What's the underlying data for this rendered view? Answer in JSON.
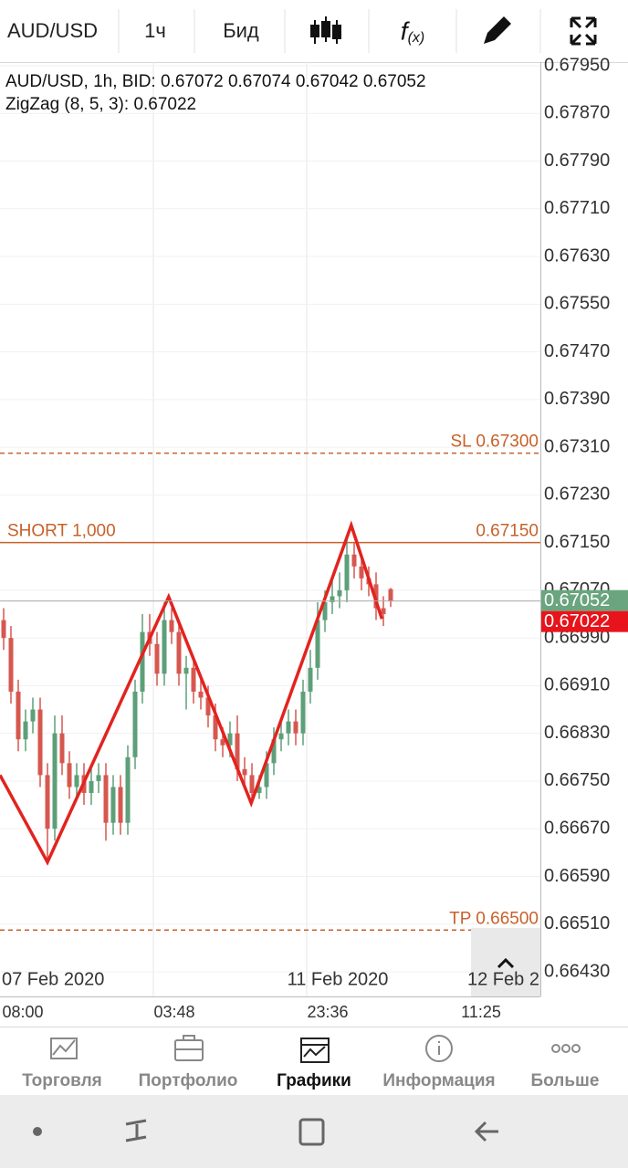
{
  "toolbar": {
    "symbol": "AUD/USD",
    "timeframe": "1ч",
    "price_type": "Бид"
  },
  "chart_data": {
    "type": "candlestick",
    "legend": [
      "AUD/USD, 1h, BID: 0.67072 0.67074 0.67042 0.67052",
      "ZigZag (8, 5, 3): 0.67022"
    ],
    "colors": {
      "up": "#5d9f79",
      "down": "#d6574f"
    },
    "open": [
      0.6702,
      0.6699,
      0.669,
      0.6682,
      0.6685,
      0.6687,
      0.6676,
      0.6667,
      0.6683,
      0.6678,
      0.6674,
      0.6676,
      0.6673,
      0.6675,
      0.6676,
      0.6668,
      0.6674,
      0.6668,
      0.6679,
      0.669,
      0.67,
      0.6698,
      0.6693,
      0.6702,
      0.67,
      0.6693,
      0.6694,
      0.669,
      0.6689,
      0.6686,
      0.6682,
      0.6681,
      0.6683,
      0.6677,
      0.6676,
      0.6673,
      0.6674,
      0.6678,
      0.6682,
      0.6683,
      0.6685,
      0.6683,
      0.669,
      0.6694,
      0.6702,
      0.6705,
      0.6706,
      0.6707,
      0.6713,
      0.6711,
      0.6709,
      0.6708,
      0.6704,
      0.67072
    ],
    "high": [
      0.6704,
      0.6701,
      0.6692,
      0.6687,
      0.6689,
      0.6689,
      0.6678,
      0.6686,
      0.6686,
      0.668,
      0.6678,
      0.6678,
      0.6677,
      0.6678,
      0.6678,
      0.6676,
      0.6676,
      0.6681,
      0.6692,
      0.6703,
      0.6703,
      0.67,
      0.6705,
      0.6704,
      0.6702,
      0.6696,
      0.6696,
      0.6692,
      0.6691,
      0.6688,
      0.6684,
      0.6685,
      0.6686,
      0.6679,
      0.6678,
      0.6676,
      0.668,
      0.6684,
      0.6685,
      0.6687,
      0.6687,
      0.6692,
      0.6697,
      0.6705,
      0.6707,
      0.6709,
      0.671,
      0.6716,
      0.6715,
      0.6713,
      0.6711,
      0.671,
      0.6706,
      0.67074
    ],
    "low": [
      0.6697,
      0.6688,
      0.668,
      0.668,
      0.6683,
      0.6674,
      0.6661,
      0.6665,
      0.6676,
      0.6672,
      0.6672,
      0.6671,
      0.6671,
      0.6673,
      0.6665,
      0.6666,
      0.6666,
      0.6666,
      0.6677,
      0.6688,
      0.6696,
      0.6691,
      0.6691,
      0.6698,
      0.6691,
      0.6687,
      0.6688,
      0.6687,
      0.6684,
      0.668,
      0.6679,
      0.6679,
      0.6675,
      0.6674,
      0.6672,
      0.6672,
      0.6672,
      0.6676,
      0.668,
      0.6681,
      0.6681,
      0.6681,
      0.6688,
      0.6692,
      0.67,
      0.6703,
      0.6704,
      0.6705,
      0.6709,
      0.6707,
      0.6706,
      0.6702,
      0.6701,
      0.67042
    ],
    "close": [
      0.6699,
      0.669,
      0.6682,
      0.6685,
      0.6687,
      0.6676,
      0.6667,
      0.6683,
      0.6678,
      0.6674,
      0.6676,
      0.6673,
      0.6675,
      0.6676,
      0.6668,
      0.6674,
      0.6668,
      0.6679,
      0.669,
      0.67,
      0.6698,
      0.6693,
      0.6702,
      0.67,
      0.6693,
      0.6694,
      0.669,
      0.6689,
      0.6686,
      0.6682,
      0.6681,
      0.6683,
      0.6677,
      0.6676,
      0.6673,
      0.6674,
      0.6678,
      0.6682,
      0.6683,
      0.6685,
      0.6683,
      0.669,
      0.6694,
      0.6702,
      0.6705,
      0.6706,
      0.6707,
      0.6713,
      0.6711,
      0.6709,
      0.6708,
      0.6704,
      0.6703,
      0.67052
    ],
    "zigzag": {
      "x": [
        -0.5,
        6,
        22.6,
        33.9,
        47.6,
        51.8
      ],
      "values": [
        0.6676,
        0.66614,
        0.67059,
        0.66713,
        0.67179,
        0.67022
      ],
      "color": "#e2231f"
    },
    "ylim": [
      0.6643,
      0.6795
    ],
    "yticks": [
      {
        "value": 0.6795,
        "label": "0.67950"
      },
      {
        "value": 0.6787,
        "label": "0.67870"
      },
      {
        "value": 0.6779,
        "label": "0.67790"
      },
      {
        "value": 0.6771,
        "label": "0.67710"
      },
      {
        "value": 0.6763,
        "label": "0.67630"
      },
      {
        "value": 0.6755,
        "label": "0.67550"
      },
      {
        "value": 0.6747,
        "label": "0.67470"
      },
      {
        "value": 0.6739,
        "label": "0.67390"
      },
      {
        "value": 0.6731,
        "label": "0.67310"
      },
      {
        "value": 0.6723,
        "label": "0.67230"
      },
      {
        "value": 0.6715,
        "label": "0.67150"
      },
      {
        "value": 0.6707,
        "label": "0.67070"
      },
      {
        "value": 0.6699,
        "label": "0.66990"
      },
      {
        "value": 0.6691,
        "label": "0.66910"
      },
      {
        "value": 0.6683,
        "label": "0.66830"
      },
      {
        "value": 0.6675,
        "label": "0.66750"
      },
      {
        "value": 0.6667,
        "label": "0.66670"
      },
      {
        "value": 0.6659,
        "label": "0.66590"
      },
      {
        "value": 0.6651,
        "label": "0.66510"
      },
      {
        "value": 0.6643,
        "label": "0.66430"
      }
    ],
    "levels": [
      {
        "value": 0.673,
        "label": "SL 0.67300",
        "style": "dashed"
      },
      {
        "value": 0.6715,
        "label": "0.67150",
        "side_label": "SHORT 1,000",
        "style": "solid"
      },
      {
        "value": 0.665,
        "label": "TP 0.66500",
        "style": "dashed"
      }
    ],
    "last_price": {
      "value": 0.67052,
      "label": "0.67052",
      "color": "#6aa57f"
    },
    "zigzag_price": {
      "value": 0.67022,
      "label": "0.67022",
      "color": "#e8141b"
    },
    "date_labels": [
      "07 Feb 2020",
      "11 Feb 2020",
      "12 Feb 2"
    ],
    "time_labels": [
      "08:00",
      "03:48",
      "23:36",
      "11:25"
    ]
  },
  "nav": [
    "Торговля",
    "Портфолио",
    "Графики",
    "Информация",
    "Больше"
  ]
}
